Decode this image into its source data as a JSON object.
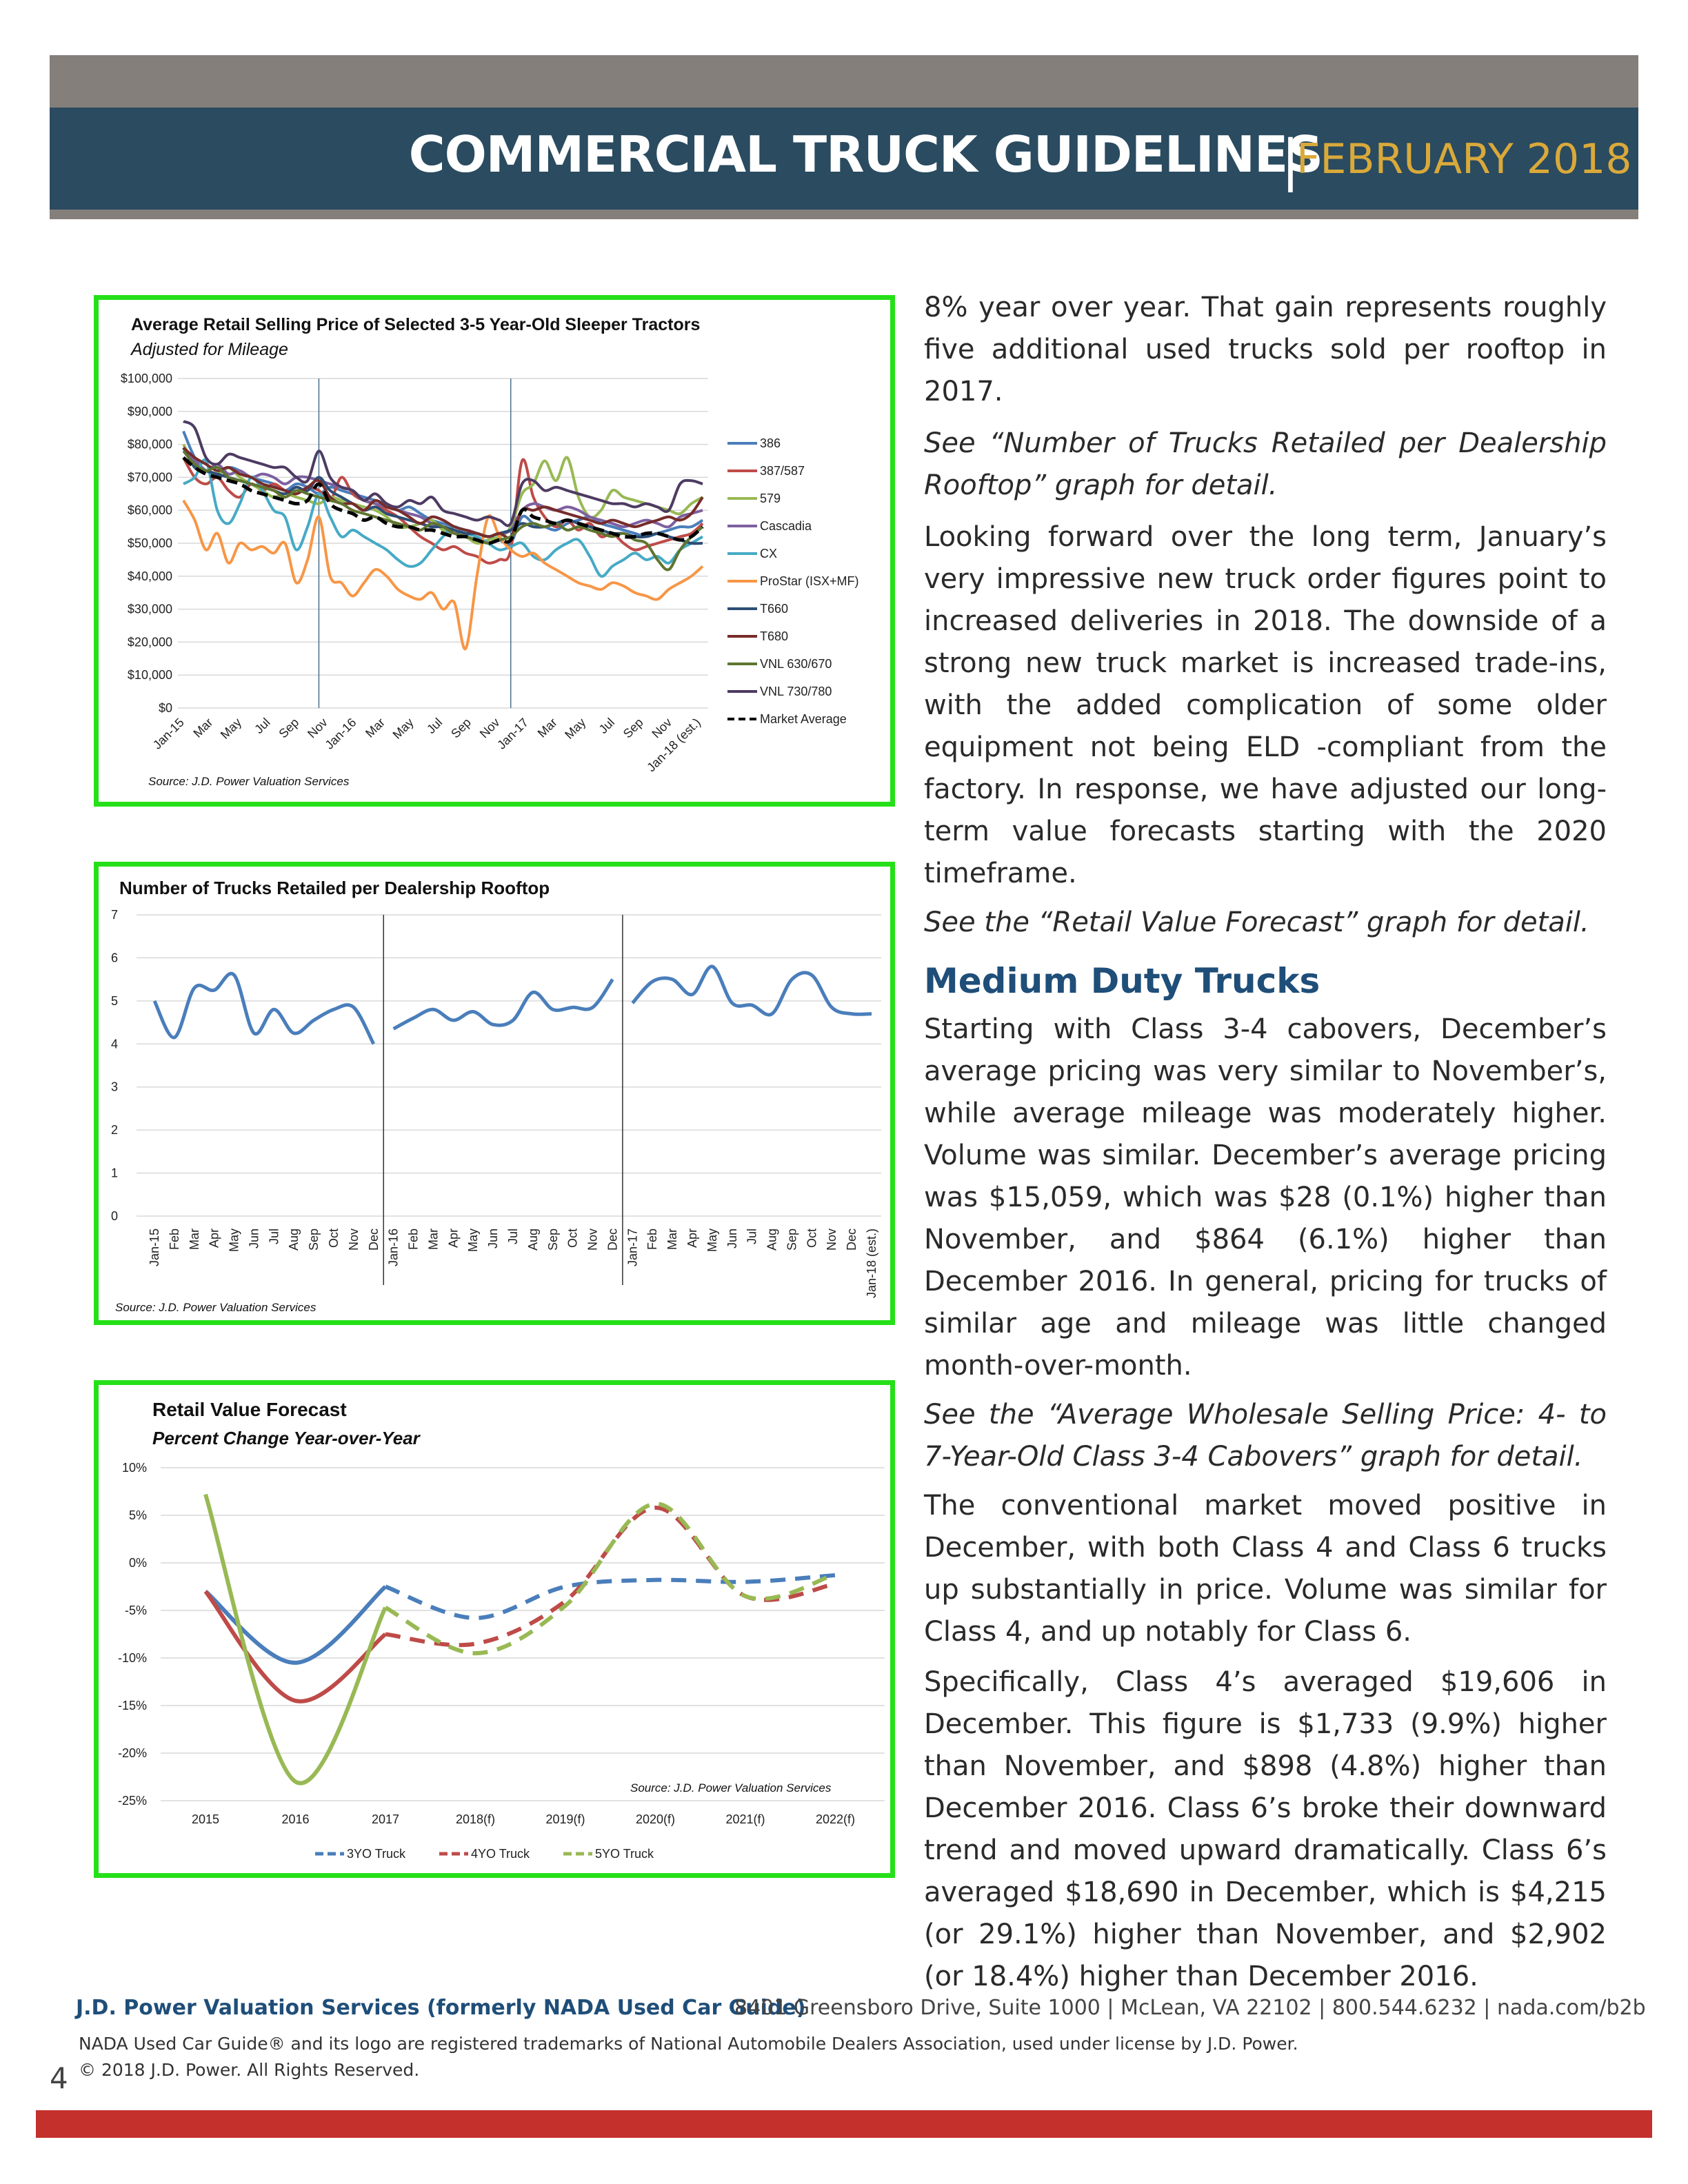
{
  "header": {
    "title": "COMMERCIAL TRUCK GUIDELINES",
    "separator": "|",
    "date": "FEBRUARY 2018"
  },
  "charts": {
    "sleeper": {
      "title": "Average Retail Selling Price of Selected 3-5 Year-Old Sleeper Tractors",
      "subtitle": "Adjusted for Mileage",
      "source": "Source: J.D. Power Valuation Services"
    },
    "trucks": {
      "title": "Number of Trucks Retailed per Dealership Rooftop",
      "source": "Source: J.D. Power Valuation Services"
    },
    "forecast": {
      "title": "Retail Value Forecast",
      "subtitle": "Percent Change Year-over-Year",
      "source": "Source: J.D. Power Valuation Services"
    }
  },
  "chart_data": [
    {
      "type": "line",
      "title": "Average Retail Selling Price of Selected 3-5 Year-Old Sleeper Tractors",
      "subtitle": "Adjusted for Mileage",
      "xlabel": "",
      "ylabel": "",
      "ylim": [
        0,
        100000
      ],
      "yticks": [
        "$0",
        "$10,000",
        "$20,000",
        "$30,000",
        "$40,000",
        "$50,000",
        "$60,000",
        "$70,000",
        "$80,000",
        "$90,000",
        "$100,000"
      ],
      "xticks": [
        "Jan-15",
        "Mar",
        "May",
        "Jul",
        "Sep",
        "Nov",
        "Jan-16",
        "Mar",
        "May",
        "Jul",
        "Sep",
        "Nov",
        "Jan-17",
        "Mar",
        "May",
        "Jul",
        "Sep",
        "Nov",
        "Jan-18 (est.)"
      ],
      "legend_position": "right",
      "grid": true,
      "colors": {
        "386": "#4a7ebb",
        "387/587": "#be4b48",
        "579": "#98b954",
        "Cascadia": "#7d60a0",
        "CX": "#46aac5",
        "ProStar (ISX+MF)": "#f79646",
        "T660": "#2c4d75",
        "T680": "#772c2a",
        "VNL 630/670": "#5f7530",
        "VNL 730/780": "#4d3b62",
        "Market Average": "#000000"
      },
      "series": [
        {
          "name": "386",
          "values": [
            84,
            76,
            72,
            71,
            73,
            72,
            70,
            69,
            68,
            66,
            68,
            67,
            65,
            67,
            66,
            65,
            64,
            63,
            62,
            60,
            61,
            59,
            57,
            56,
            55,
            54,
            53,
            52,
            51,
            50,
            58,
            56,
            55,
            54,
            56,
            57,
            58,
            56,
            55,
            54,
            53,
            52,
            53,
            54,
            55,
            55,
            57
          ]
        },
        {
          "name": "387/587",
          "values": [
            76,
            70,
            68,
            70,
            66,
            64,
            68,
            66,
            68,
            66,
            65,
            67,
            66,
            63,
            70,
            65,
            63,
            62,
            60,
            58,
            55,
            52,
            50,
            48,
            49,
            47,
            46,
            44,
            45,
            48,
            75,
            64,
            58,
            55,
            57,
            54,
            56,
            52,
            53,
            50,
            48,
            49,
            50,
            51,
            52,
            53,
            56
          ]
        },
        {
          "name": "579",
          "values": [
            80,
            74,
            72,
            71,
            73,
            70,
            68,
            66,
            64,
            65,
            64,
            63,
            62,
            64,
            63,
            62,
            61,
            60,
            58,
            55,
            55,
            56,
            57,
            54,
            53,
            52,
            50,
            51,
            52,
            55,
            65,
            68,
            75,
            69,
            76,
            64,
            58,
            60,
            66,
            64,
            63,
            62,
            61,
            60,
            59,
            62,
            64
          ]
        },
        {
          "name": "Cascadia",
          "values": [
            78,
            75,
            72,
            74,
            71,
            72,
            70,
            71,
            70,
            68,
            70,
            70,
            69,
            68,
            67,
            66,
            63,
            62,
            61,
            60,
            59,
            58,
            56,
            55,
            53,
            54,
            53,
            52,
            53,
            54,
            60,
            62,
            61,
            60,
            61,
            60,
            58,
            57,
            56,
            55,
            56,
            57,
            56,
            55,
            58,
            59,
            60
          ]
        },
        {
          "name": "CX",
          "values": [
            68,
            70,
            75,
            60,
            56,
            62,
            70,
            66,
            60,
            58,
            48,
            55,
            65,
            58,
            52,
            54,
            52,
            50,
            48,
            45,
            43,
            44,
            48,
            52,
            55,
            53,
            52,
            50,
            48,
            49,
            50,
            46,
            45,
            48,
            50,
            51,
            46,
            40,
            43,
            45,
            47,
            45,
            46,
            44,
            48,
            50,
            52
          ]
        },
        {
          "name": "ProStar (ISX+MF)",
          "values": [
            63,
            57,
            48,
            53,
            44,
            50,
            48,
            49,
            47,
            50,
            38,
            45,
            58,
            40,
            38,
            34,
            38,
            42,
            40,
            36,
            34,
            33,
            35,
            30,
            32,
            18,
            40,
            58,
            52,
            48,
            46,
            47,
            44,
            42,
            40,
            38,
            37,
            36,
            38,
            37,
            35,
            34,
            33,
            36,
            38,
            40,
            43
          ]
        },
        {
          "name": "T660",
          "values": [
            79,
            73,
            72,
            71,
            70,
            69,
            68,
            67,
            66,
            65,
            67,
            66,
            70,
            66,
            64,
            62,
            60,
            61,
            59,
            58,
            57,
            56,
            55,
            55,
            54,
            53,
            53,
            52,
            53,
            54,
            56,
            55,
            55,
            56,
            57,
            56,
            55,
            54,
            53,
            53,
            52,
            52,
            53,
            52,
            51,
            50,
            50
          ]
        },
        {
          "name": "T680",
          "values": [
            79,
            76,
            74,
            72,
            73,
            71,
            70,
            68,
            67,
            66,
            65,
            67,
            69,
            64,
            62,
            62,
            60,
            63,
            61,
            60,
            58,
            56,
            58,
            57,
            55,
            54,
            53,
            52,
            53,
            52,
            60,
            60,
            61,
            60,
            59,
            58,
            57,
            56,
            57,
            56,
            55,
            56,
            57,
            58,
            57,
            59,
            64
          ]
        },
        {
          "name": "VNL 630/670",
          "values": [
            78,
            74,
            72,
            73,
            70,
            69,
            68,
            67,
            66,
            64,
            66,
            65,
            64,
            63,
            62,
            60,
            59,
            58,
            57,
            56,
            55,
            54,
            56,
            55,
            53,
            52,
            51,
            50,
            51,
            52,
            55,
            56,
            55,
            56,
            54,
            55,
            54,
            53,
            52,
            53,
            51,
            50,
            45,
            42,
            48,
            52,
            55
          ]
        },
        {
          "name": "VNL 730/780",
          "values": [
            87,
            85,
            76,
            74,
            77,
            76,
            75,
            74,
            73,
            73,
            70,
            69,
            78,
            70,
            67,
            66,
            63,
            65,
            62,
            61,
            63,
            62,
            64,
            60,
            59,
            58,
            57,
            58,
            57,
            56,
            68,
            69,
            66,
            67,
            66,
            65,
            64,
            63,
            62,
            62,
            61,
            62,
            61,
            60,
            68,
            69,
            68
          ]
        },
        {
          "name": "Market Average",
          "values": [
            76,
            73,
            71,
            70,
            69,
            68,
            66,
            65,
            64,
            63,
            62,
            63,
            68,
            62,
            60,
            59,
            57,
            58,
            56,
            55,
            55,
            54,
            54,
            53,
            52,
            52,
            51,
            50,
            51,
            51,
            60,
            58,
            57,
            56,
            57,
            56,
            55,
            54,
            53,
            52,
            52,
            53,
            53,
            52,
            51,
            52,
            55
          ]
        }
      ]
    },
    {
      "type": "line",
      "title": "Number of Trucks Retailed per Dealership Rooftop",
      "xlabel": "",
      "ylabel": "",
      "ylim": [
        0,
        7
      ],
      "yticks": [
        "0",
        "1",
        "2",
        "3",
        "4",
        "5",
        "6",
        "7"
      ],
      "categories": [
        "Jan-15",
        "Feb",
        "Mar",
        "Apr",
        "May",
        "Jun",
        "Jul",
        "Aug",
        "Sep",
        "Oct",
        "Nov",
        "Dec",
        "Jan-16",
        "Feb",
        "Mar",
        "Apr",
        "May",
        "Jun",
        "Jul",
        "Aug",
        "Sep",
        "Oct",
        "Nov",
        "Dec",
        "Jan-17",
        "Feb",
        "Mar",
        "Apr",
        "May",
        "Jun",
        "Jul",
        "Aug",
        "Sep",
        "Oct",
        "Nov",
        "Dec",
        "Jan-18 (est.)"
      ],
      "grid": true,
      "series": [
        {
          "name": "",
          "values": [
            5.0,
            4.15,
            5.3,
            5.25,
            5.6,
            4.25,
            4.8,
            4.25,
            4.55,
            4.8,
            4.85,
            4.0,
            4.35,
            4.6,
            4.8,
            4.55,
            4.75,
            4.45,
            4.55,
            5.2,
            4.8,
            4.85,
            4.85,
            5.5,
            4.95,
            5.45,
            5.5,
            5.15,
            5.8,
            4.95,
            4.9,
            4.7,
            5.5,
            5.6,
            4.85,
            4.7,
            4.7
          ]
        }
      ]
    },
    {
      "type": "line",
      "title": "Retail Value Forecast",
      "subtitle": "Percent Change Year-over-Year",
      "xlabel": "",
      "ylabel": "",
      "ylim": [
        -25,
        10
      ],
      "yticks": [
        "-25%",
        "-20%",
        "-15%",
        "-10%",
        "-5%",
        "0%",
        "5%",
        "10%"
      ],
      "categories": [
        "2015",
        "2016",
        "2017",
        "2018(f)",
        "2019(f)",
        "2020(f)",
        "2021(f)",
        "2022(f)"
      ],
      "legend_position": "bottom",
      "grid": true,
      "series": [
        {
          "name": "3YO Truck",
          "color": "#4a7ebb",
          "values": [
            -3.0,
            -10.5,
            -2.5,
            -5.8,
            -2.5,
            -1.8,
            -2.0,
            -1.3
          ]
        },
        {
          "name": "4YO Truck",
          "color": "#be4b48",
          "values": [
            -3.0,
            -14.5,
            -7.5,
            -8.5,
            -4.0,
            5.8,
            -3.5,
            -2.2
          ]
        },
        {
          "name": "5YO Truck",
          "color": "#98b954",
          "values": [
            7.2,
            -23.0,
            -4.7,
            -9.5,
            -4.5,
            6.2,
            -3.5,
            -1.2
          ]
        }
      ]
    }
  ],
  "body": {
    "p1": "8% year over year. That gain represents roughly five additional used trucks sold per rooftop in 2017.",
    "p2": "See “Number of Trucks Retailed per Dealership Rooftop” graph for detail.",
    "p3": "Looking forward over the long term, January’s very impressive new truck order figures point to increased deliveries in 2018. The downside of a strong new truck market is increased trade-ins, with the added complication of some older equipment not being ELD -compliant from the factory. In response, we have adjusted our long-term value forecasts starting with the 2020 timeframe.",
    "p4": "See the “Retail Value Forecast” graph for detail.",
    "heading": "Medium Duty Trucks",
    "p5": "Starting with Class 3-4 cabovers, December’s average pricing was very similar to November’s, while average mileage was moderately higher. Volume was similar. December’s average pricing was $15,059, which was $28 (0.1%) higher than November, and $864 (6.1%) higher than December 2016. In general, pricing for trucks of similar age and mileage was little changed month-over-month.",
    "p6": "See the “Average Wholesale Selling Price: 4- to 7-Year-Old Class 3-4 Cabovers” graph for detail.",
    "p7": "The conventional market moved positive in December, with both Class 4 and Class 6 trucks up substantially in price. Volume was similar for Class 4, and up notably for Class 6.",
    "p8": "Specifically, Class 4’s averaged $19,606 in December. This figure is $1,733 (9.9%) higher than November, and $898 (4.8%) higher than December 2016. Class 6’s broke their downward trend and moved upward dramatically. Class 6’s averaged $18,690 in December, which is $4,215 (or 29.1%) higher than November, and $2,902 (or 18.4%) higher than December 2016."
  },
  "footer": {
    "company": "J.D. Power Valuation Services (formerly NADA Used Car Guide)",
    "address": "8401 Greensboro Drive, Suite 1000 | McLean, VA 22102 | 800.544.6232 | nada.com/b2b",
    "trademark": "NADA Used Car Guide® and its logo are registered trademarks of National Automobile Dealers Association, used under license by J.D. Power.",
    "copyright": "© 2018 J.D. Power. All Rights Reserved.",
    "page_number": "4"
  }
}
